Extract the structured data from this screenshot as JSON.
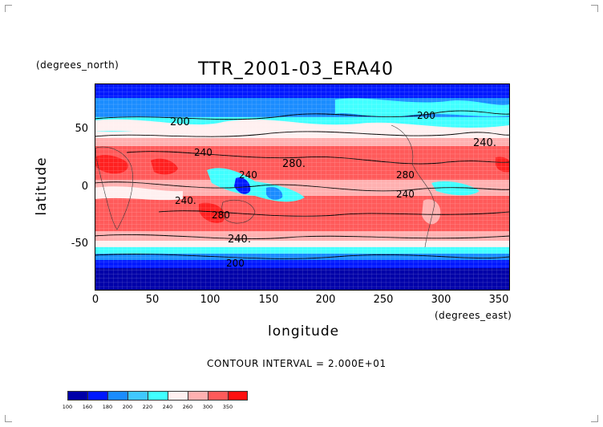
{
  "figure": {
    "title": "TTR_2001-03_ERA40",
    "lat_units": "(degrees_north)",
    "lon_units": "(degrees_east)",
    "xlabel": "longitude",
    "ylabel": "latitude",
    "contour_interval_text": "CONTOUR INTERVAL = 2.000E+01"
  },
  "axes": {
    "x_ticks": [
      "0",
      "50",
      "100",
      "150",
      "200",
      "250",
      "300",
      "350"
    ],
    "y_ticks": [
      "50",
      "0",
      "-50"
    ],
    "x_range": [
      0,
      360
    ],
    "y_range": [
      -90,
      90
    ]
  },
  "contour_labels": [
    "200",
    "200",
    "240.",
    "240",
    "280.",
    "240",
    "280",
    "240.",
    "240",
    "280",
    "240.",
    "200"
  ],
  "colorbar": {
    "labels": [
      "100",
      "160",
      "180",
      "200",
      "220",
      "240",
      "260",
      "300",
      "350"
    ],
    "colors": [
      "#0000a8",
      "#0018ff",
      "#1a8cff",
      "#40c8ff",
      "#40ffff",
      "#fff0f0",
      "#ffb0b0",
      "#ff5a5a",
      "#ff1010"
    ]
  },
  "chart_data": {
    "type": "heatmap",
    "title": "TTR_2001-03_ERA40",
    "xlabel": "longitude",
    "ylabel": "latitude",
    "x_units": "(degrees_east)",
    "y_units": "(degrees_north)",
    "xlim": [
      0,
      360
    ],
    "ylim": [
      -90,
      90
    ],
    "contour_interval": 20,
    "levels": [
      100,
      160,
      180,
      200,
      220,
      240,
      260,
      300,
      350
    ]
  }
}
